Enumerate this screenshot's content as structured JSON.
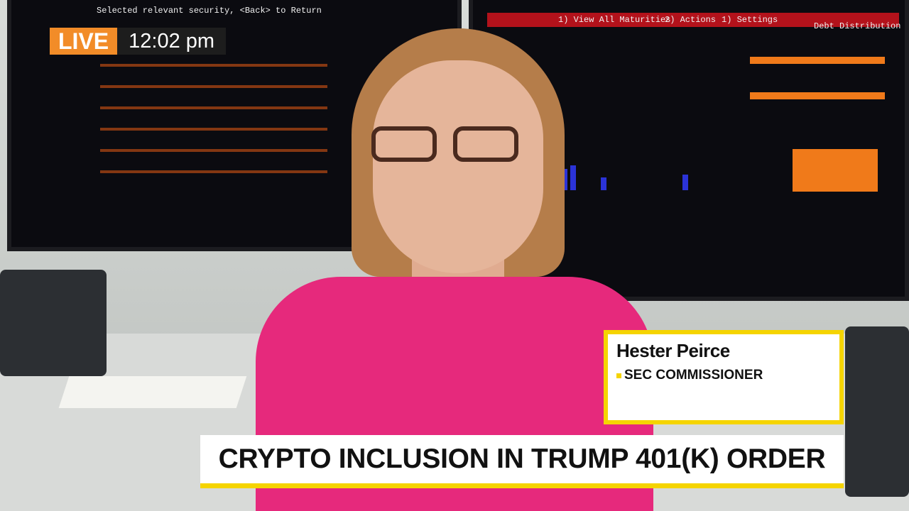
{
  "live_badge": {
    "label": "LIVE",
    "time": "12:02 pm",
    "color": "#f28c28"
  },
  "lower_third": {
    "name": "Hester Peirce",
    "title": "SEC COMMISSIONER",
    "accent": "#f5d400"
  },
  "headline": "CRYPTO INCLUSION IN TRUMP 401(K) ORDER",
  "background_screens": {
    "left_header": "Selected relevant security, <Back> to Return",
    "right_menu": [
      "1) View All Maturities",
      "2) Actions",
      "1) Settings",
      "Debt Distribution"
    ]
  }
}
